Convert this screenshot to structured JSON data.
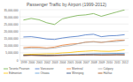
{
  "chart_data": {
    "type": "line",
    "title": "Passenger Traffic by Airport (1999-2012)",
    "categories": [
      "1999",
      "2000",
      "2001",
      "2002",
      "2003",
      "2004",
      "2005",
      "2006",
      "2007",
      "2008",
      "2009",
      "2010",
      "2011",
      "2012"
    ],
    "ylim": [
      0,
      35000000
    ],
    "yticks": [
      {
        "value": 0,
        "label": "0"
      },
      {
        "value": 5000000,
        "label": "5,000,000"
      },
      {
        "value": 10000000,
        "label": "10,000,000"
      },
      {
        "value": 15000000,
        "label": "15,000,000"
      },
      {
        "value": 20000000,
        "label": "20,000,000"
      },
      {
        "value": 25000000,
        "label": "25,000,000"
      },
      {
        "value": 30000000,
        "label": "30,000,000"
      },
      {
        "value": 35000000,
        "label": "35,000,000"
      }
    ],
    "grid": true,
    "legend": "bottom",
    "series": [
      {
        "name": "Toronto Pearson",
        "color": "#70ad47",
        "values": [
          27800000,
          28900000,
          28000000,
          25900000,
          24700000,
          28600000,
          29900000,
          31000000,
          31400000,
          32300000,
          30400000,
          31900000,
          33400000,
          34900000
        ]
      },
      {
        "name": "Vancouver",
        "color": "#4472c4",
        "values": [
          16000000,
          16200000,
          15500000,
          14600000,
          14300000,
          15300000,
          16000000,
          16500000,
          17500000,
          17900000,
          16200000,
          16800000,
          17000000,
          17600000
        ]
      },
      {
        "name": "Montreal",
        "color": "#ed7d31",
        "values": [
          8600000,
          9000000,
          8900000,
          8400000,
          9000000,
          10300000,
          11000000,
          11400000,
          12400000,
          12800000,
          12200000,
          12900000,
          13700000,
          13800000
        ]
      },
      {
        "name": "Calgary",
        "color": "#a5a5a5",
        "values": [
          7900000,
          8200000,
          8000000,
          7900000,
          8300000,
          9400000,
          10000000,
          11300000,
          12300000,
          12500000,
          12300000,
          12600000,
          12800000,
          13600000
        ]
      },
      {
        "name": "Edmonton",
        "color": "#ffc000",
        "values": [
          3700000,
          4000000,
          4100000,
          4300000,
          4400000,
          4900000,
          5200000,
          5800000,
          6100000,
          6400000,
          6100000,
          6000000,
          6300000,
          7100000
        ]
      },
      {
        "name": "Ottawa",
        "color": "#5b9bd5",
        "values": [
          3300000,
          3400000,
          3400000,
          3300000,
          3300000,
          3600000,
          3800000,
          3800000,
          4100000,
          4300000,
          4400000,
          4500000,
          4600000,
          4600000
        ]
      },
      {
        "name": "Winnipeg",
        "color": "#264478",
        "values": [
          3300000,
          3400000,
          3200000,
          3100000,
          3200000,
          3300000,
          3400000,
          3400000,
          3600000,
          3600000,
          3600000,
          3600000,
          3700000,
          3600000
        ]
      },
      {
        "name": "Halifax",
        "color": "#9e480e",
        "values": [
          3000000,
          3200000,
          3100000,
          3000000,
          3100000,
          3200000,
          3300000,
          3400000,
          3500000,
          3600000,
          3400000,
          3500000,
          3600000,
          3600000
        ]
      }
    ]
  }
}
